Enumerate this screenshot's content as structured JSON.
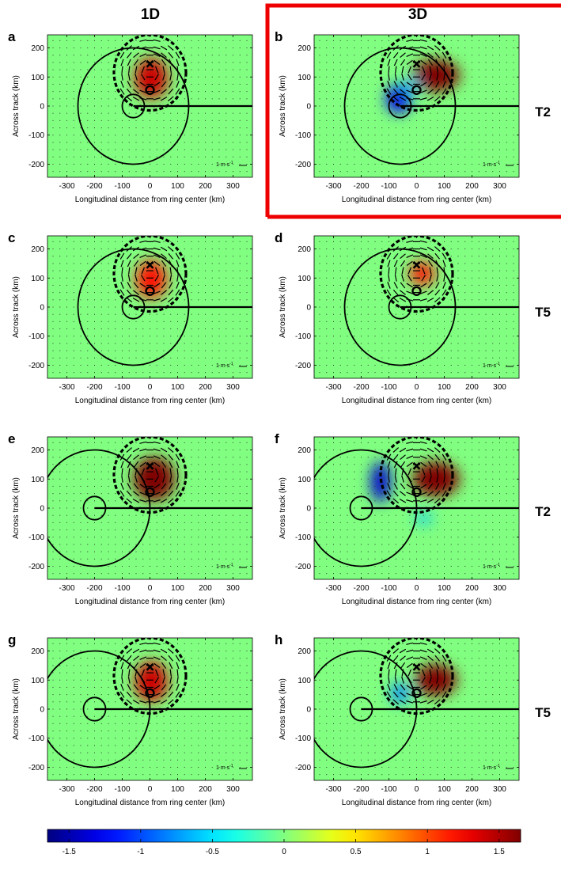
{
  "column_titles": [
    "1D",
    "3D"
  ],
  "row_labels": [
    "T2",
    "T5",
    "T2",
    "T5"
  ],
  "highlight_color": "#ee0000",
  "chart_data": {
    "type": "heatmap",
    "xlabel": "Longitudinal distance from ring center (km)",
    "ylabel": "Across track (km)",
    "xlim": [
      -370,
      370
    ],
    "ylim": [
      -245,
      245
    ],
    "xticks": [
      -300,
      -200,
      -100,
      0,
      100,
      200,
      300
    ],
    "yticks": [
      -200,
      -100,
      0,
      100,
      200
    ],
    "vector_scale_label": "1 m s",
    "vector_scale_exponent": "-1",
    "colorbar": {
      "min": -1.65,
      "max": 1.65,
      "ticks": [
        -1.5,
        -1,
        -0.5,
        0,
        0.5,
        1,
        1.5
      ],
      "tick_labels": [
        "-1.5",
        "-1",
        "-0.5",
        "0",
        "0.5",
        "1",
        "1.5"
      ],
      "colormap": "jet"
    },
    "panels": [
      {
        "letter": "a",
        "model": "1D",
        "row_label": "T2",
        "highlighted": false,
        "ring_center": [
          -60,
          0
        ],
        "ring_radii": [
          40,
          200
        ],
        "storm_circle": {
          "center": [
            0,
            115
          ],
          "radius": 130
        },
        "cross": [
          0,
          145
        ],
        "open_circle": [
          0,
          55
        ],
        "track_from_x": -60,
        "anomalies": [
          {
            "center": [
              5,
              95
            ],
            "radius": [
              60,
              70
            ],
            "value": 1.4
          }
        ]
      },
      {
        "letter": "b",
        "model": "3D",
        "row_label": "T2",
        "highlighted": true,
        "ring_center": [
          -60,
          0
        ],
        "ring_radii": [
          40,
          200
        ],
        "storm_circle": {
          "center": [
            0,
            115
          ],
          "radius": 130
        },
        "cross": [
          0,
          145
        ],
        "open_circle": [
          0,
          55
        ],
        "track_from_x": -60,
        "anomalies": [
          {
            "center": [
              70,
              105
            ],
            "radius": [
              85,
              55
            ],
            "value": 1.65
          },
          {
            "center": [
              -65,
              25
            ],
            "radius": [
              45,
              50
            ],
            "value": -1.3
          },
          {
            "center": [
              -20,
              70
            ],
            "radius": [
              25,
              25
            ],
            "value": -0.6
          }
        ]
      },
      {
        "letter": "c",
        "model": "1D",
        "row_label": "T5",
        "highlighted": false,
        "ring_center": [
          -60,
          0
        ],
        "ring_radii": [
          40,
          200
        ],
        "storm_circle": {
          "center": [
            0,
            115
          ],
          "radius": 130
        },
        "cross": [
          0,
          145
        ],
        "open_circle": [
          0,
          55
        ],
        "track_from_x": -60,
        "anomalies": [
          {
            "center": [
              5,
              95
            ],
            "radius": [
              55,
              65
            ],
            "value": 1.2
          }
        ]
      },
      {
        "letter": "d",
        "model": "3D",
        "row_label": "T5",
        "highlighted": false,
        "ring_center": [
          -60,
          0
        ],
        "ring_radii": [
          40,
          200
        ],
        "storm_circle": {
          "center": [
            0,
            115
          ],
          "radius": 130
        },
        "cross": [
          0,
          145
        ],
        "open_circle": [
          0,
          55
        ],
        "track_from_x": -60,
        "anomalies": [
          {
            "center": [
              20,
              115
            ],
            "radius": [
              45,
              40
            ],
            "value": 1.2
          }
        ]
      },
      {
        "letter": "e",
        "model": "1D",
        "row_label": "T2",
        "highlighted": false,
        "ring_center": [
          -200,
          0
        ],
        "ring_radii": [
          40,
          200
        ],
        "storm_circle": {
          "center": [
            0,
            115
          ],
          "radius": 130
        },
        "cross": [
          0,
          145
        ],
        "open_circle": [
          0,
          55
        ],
        "track_from_x": -200,
        "anomalies": [
          {
            "center": [
              15,
              100
            ],
            "radius": [
              75,
              75
            ],
            "value": 1.65
          }
        ]
      },
      {
        "letter": "f",
        "model": "3D",
        "row_label": "T2",
        "highlighted": false,
        "ring_center": [
          -200,
          0
        ],
        "ring_radii": [
          40,
          200
        ],
        "storm_circle": {
          "center": [
            0,
            115
          ],
          "radius": 130
        },
        "cross": [
          0,
          145
        ],
        "open_circle": [
          0,
          55
        ],
        "track_from_x": -200,
        "anomalies": [
          {
            "center": [
              70,
              100
            ],
            "radius": [
              85,
              60
            ],
            "value": 1.65
          },
          {
            "center": [
              -130,
              90
            ],
            "radius": [
              35,
              70
            ],
            "value": -1.4
          },
          {
            "center": [
              25,
              -35
            ],
            "radius": [
              30,
              20
            ],
            "value": -0.6
          }
        ]
      },
      {
        "letter": "g",
        "model": "1D",
        "row_label": "T5",
        "highlighted": false,
        "ring_center": [
          -200,
          0
        ],
        "ring_radii": [
          40,
          200
        ],
        "storm_circle": {
          "center": [
            0,
            115
          ],
          "radius": 130
        },
        "cross": [
          0,
          145
        ],
        "open_circle": [
          0,
          55
        ],
        "track_from_x": -200,
        "anomalies": [
          {
            "center": [
              5,
              95
            ],
            "radius": [
              60,
              70
            ],
            "value": 1.4
          }
        ]
      },
      {
        "letter": "h",
        "model": "3D",
        "row_label": "T5",
        "highlighted": false,
        "ring_center": [
          -200,
          0
        ],
        "ring_radii": [
          40,
          200
        ],
        "storm_circle": {
          "center": [
            0,
            115
          ],
          "radius": 130
        },
        "cross": [
          0,
          145
        ],
        "open_circle": [
          0,
          55
        ],
        "track_from_x": -200,
        "anomalies": [
          {
            "center": [
              70,
              100
            ],
            "radius": [
              75,
              55
            ],
            "value": 1.65
          },
          {
            "center": [
              -60,
              55
            ],
            "radius": [
              35,
              35
            ],
            "value": -0.8
          }
        ]
      }
    ]
  }
}
